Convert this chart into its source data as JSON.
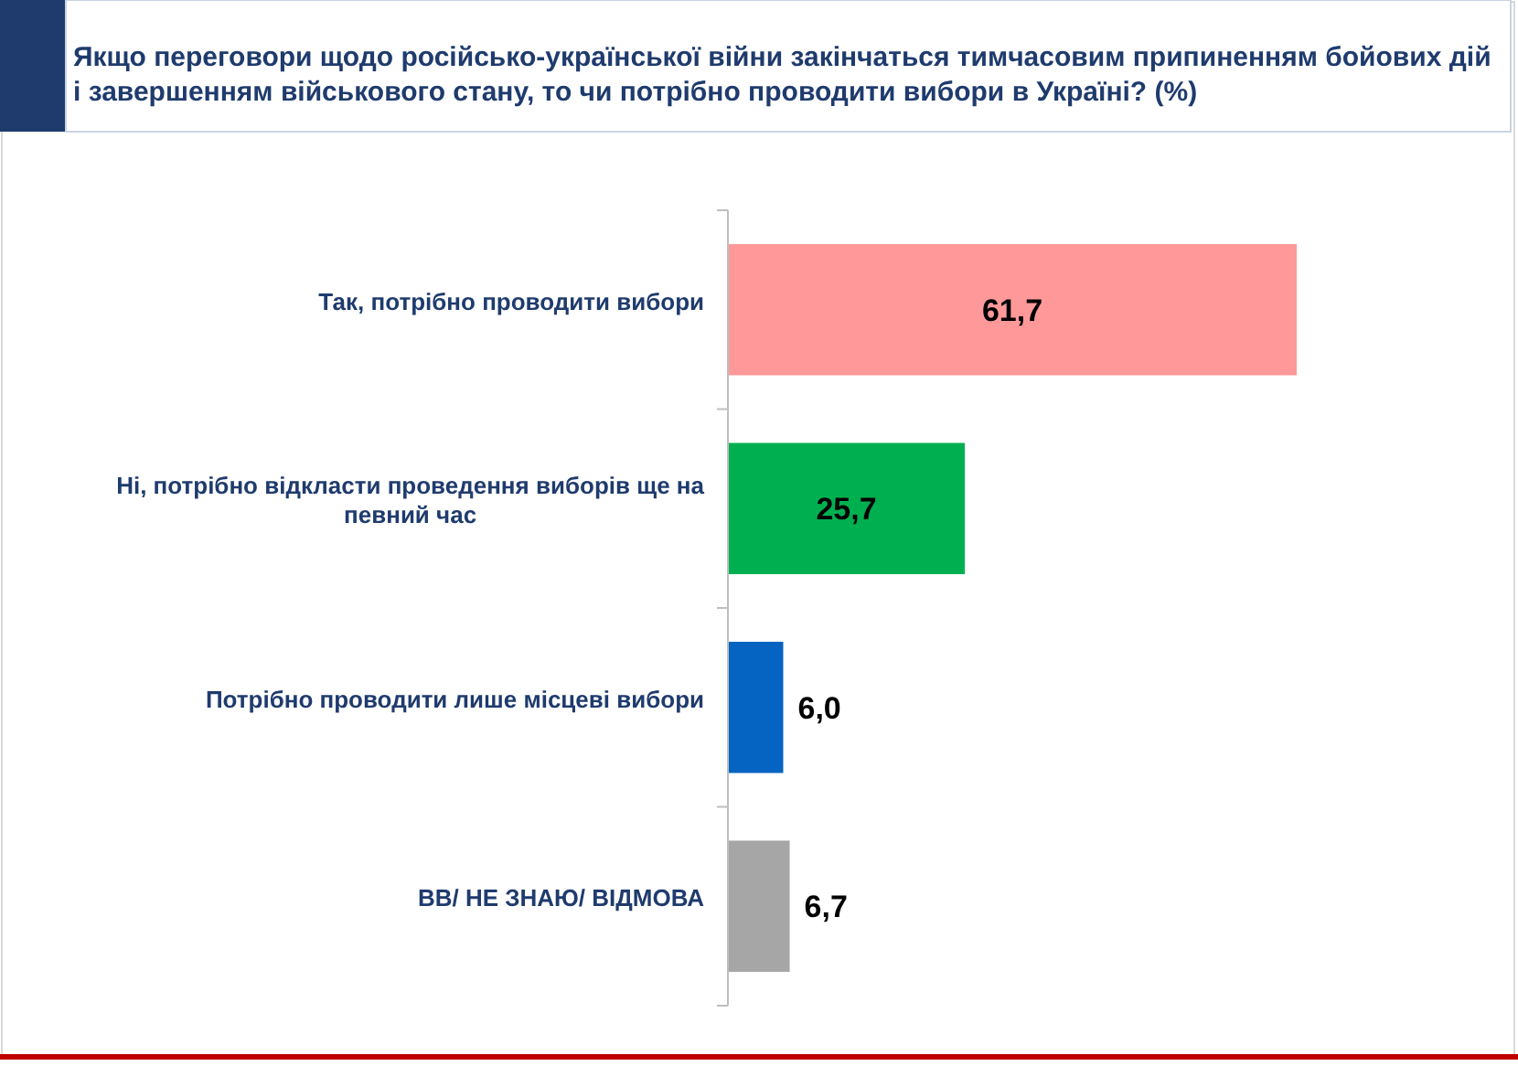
{
  "chart_data": {
    "type": "bar",
    "orientation": "horizontal",
    "title": "Якщо переговори щодо російсько-української війни закінчаться тимчасовим припиненням бойових дій і завершенням військового стану, то чи потрібно проводити вибори в Україні? (%)",
    "categories": [
      "Так, потрібно проводити вибори",
      "Ні, потрібно відкласти проведення виборів ще на певний час",
      "Потрібно проводити лише місцеві вибори",
      "ВВ/ НЕ ЗНАЮ/ ВІДМОВА"
    ],
    "values": [
      61.7,
      25.7,
      6.0,
      6.7
    ],
    "colors": [
      "#ff9999",
      "#00b050",
      "#0563c1",
      "#a6a6a6"
    ],
    "value_labels": [
      "61,7",
      "25,7",
      "6,0",
      "6,7"
    ]
  }
}
